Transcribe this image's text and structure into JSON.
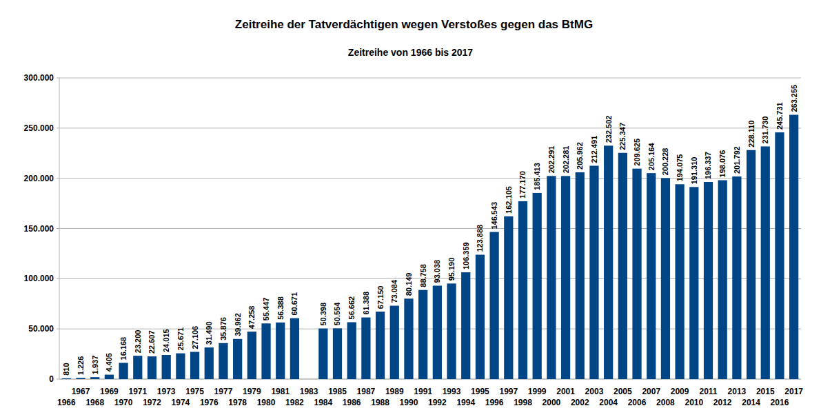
{
  "chart_data": {
    "type": "bar",
    "title": "Zeitreihe der Tatverdächtigen wegen Verstoßes gegen das BtMG",
    "subtitle": "Zeitreihe von 1966 bis 2017",
    "categories": [
      "1966",
      "1967",
      "1968",
      "1969",
      "1970",
      "1971",
      "1972",
      "1973",
      "1974",
      "1975",
      "1976",
      "1977",
      "1978",
      "1979",
      "1980",
      "1981",
      "1982",
      "1983",
      "1984",
      "1985",
      "1986",
      "1987",
      "1988",
      "1989",
      "1990",
      "1991",
      "1992",
      "1993",
      "1994",
      "1995",
      "1996",
      "1997",
      "1998",
      "1999",
      "2000",
      "2001",
      "2002",
      "2003",
      "2004",
      "2005",
      "2006",
      "2007",
      "2008",
      "2009",
      "2010",
      "2011",
      "2012",
      "2013",
      "2014",
      "2015",
      "2016",
      "2017"
    ],
    "values": [
      810,
      1226,
      1937,
      4405,
      16168,
      23200,
      22607,
      24015,
      25671,
      27106,
      31490,
      35876,
      39962,
      47258,
      55447,
      56388,
      60671,
      null,
      50398,
      50554,
      56662,
      61388,
      67150,
      73084,
      80149,
      88758,
      93038,
      95190,
      106359,
      123888,
      146543,
      162105,
      177170,
      185413,
      202291,
      202281,
      205962,
      212491,
      232502,
      225347,
      209625,
      205164,
      200228,
      194075,
      191310,
      196337,
      198076,
      201792,
      228110,
      231730,
      245731,
      263255
    ],
    "value_labels": [
      "810",
      "1.226",
      "1.937",
      "4.405",
      "16.168",
      "23.200",
      "22.607",
      "24.015",
      "25.671",
      "27.106",
      "31.490",
      "35.876",
      "39.962",
      "47.258",
      "55.447",
      "56.388",
      "60.671",
      null,
      "50.398",
      "50.554",
      "56.662",
      "61.388",
      "67.150",
      "73.084",
      "80.149",
      "88.758",
      "93.038",
      "95.190",
      "106.359",
      "123.888",
      "146.543",
      "162.105",
      "177.170",
      "185.413",
      "202.291",
      "202.281",
      "205.962",
      "212.491",
      "232.502",
      "225.347",
      "209.625",
      "205.164",
      "200.228",
      "194.075",
      "191.310",
      "196.337",
      "198.076",
      "201.792",
      "228.110",
      "231.730",
      "245.731",
      "263.255"
    ],
    "color": "#004586",
    "ylim": [
      0,
      300000
    ],
    "yticks": [
      0,
      {
        "value": 50000,
        "label": "50.000"
      },
      {
        "value": 100000,
        "label": "100.000"
      },
      {
        "value": 150000,
        "label": "150.000"
      },
      {
        "value": 200000,
        "label": "200.000"
      },
      {
        "value": 250000,
        "label": "250.000"
      },
      {
        "value": 300000,
        "label": "300.000"
      }
    ],
    "grid": true,
    "data_labels": true
  }
}
